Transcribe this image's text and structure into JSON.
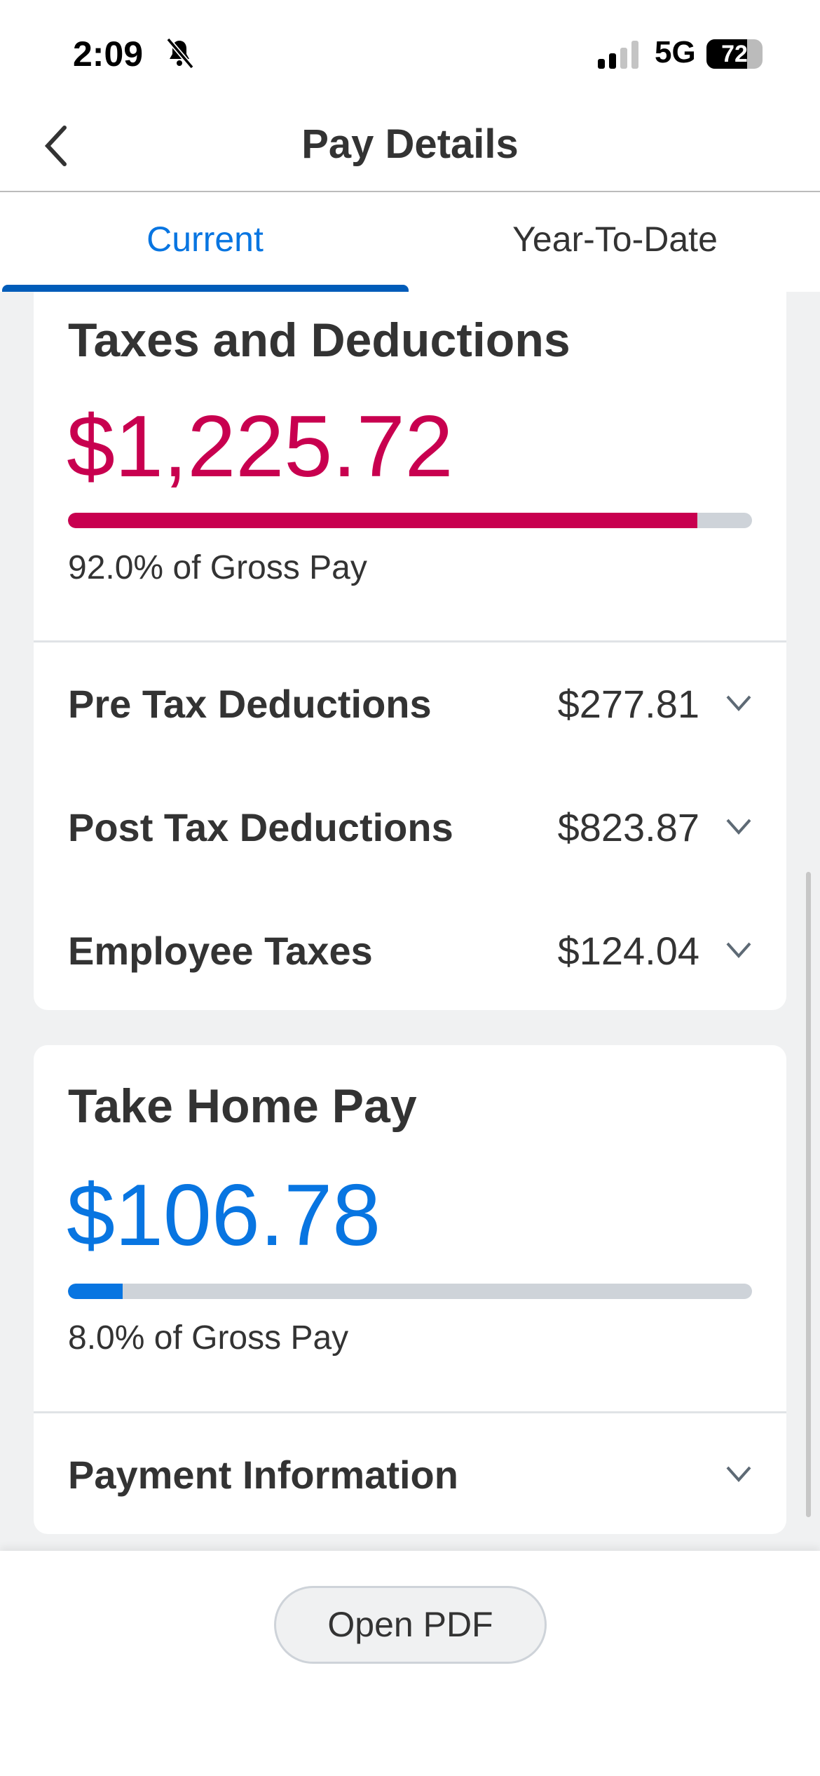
{
  "status_bar": {
    "time": "2:09",
    "network": "5G",
    "battery": "72",
    "battery_level": 0.72,
    "icons": [
      "bell-slash-icon",
      "signal-icon",
      "battery-icon"
    ]
  },
  "header": {
    "title": "Pay Details",
    "back_icon": "chevron-left-icon"
  },
  "tabs": [
    {
      "label": "Current",
      "active": true
    },
    {
      "label": "Year-To-Date",
      "active": false
    }
  ],
  "taxes_card": {
    "title": "Taxes and Deductions",
    "amount": "$1,225.72",
    "percent_label": "92.0% of Gross Pay",
    "percent": 92.0,
    "color": "#c8004f",
    "rows": [
      {
        "label": "Pre Tax Deductions",
        "value": "$277.81"
      },
      {
        "label": "Post Tax Deductions",
        "value": "$823.87"
      },
      {
        "label": "Employee Taxes",
        "value": "$124.04"
      }
    ]
  },
  "take_home_card": {
    "title": "Take Home Pay",
    "amount": "$106.78",
    "percent_label": "8.0% of Gross Pay",
    "percent": 8.0,
    "color": "#0875e1",
    "rows": [
      {
        "label": "Payment Information"
      }
    ]
  },
  "footer": {
    "open_pdf_label": "Open PDF"
  },
  "colors": {
    "accent": "#0875e1",
    "tab_underline": "#005cb9",
    "deductions": "#c8004f",
    "background": "#f0f1f2"
  }
}
